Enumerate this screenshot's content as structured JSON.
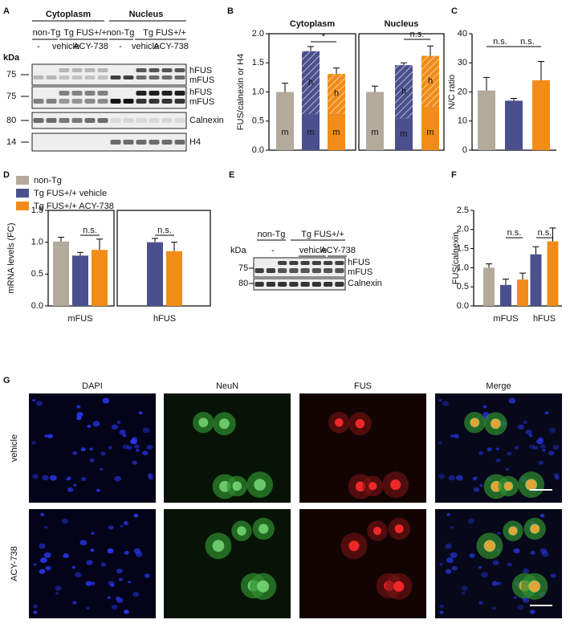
{
  "panel_labels": [
    "A",
    "B",
    "C",
    "D",
    "E",
    "F",
    "G"
  ],
  "blot_a": {
    "fractions": [
      "Cytoplasm",
      "Nucleus"
    ],
    "genotypes": [
      "non-Tg",
      "Tg FUS+/+",
      "non-Tg",
      "Tg FUS+/+"
    ],
    "treatments": [
      "-",
      "vehicle",
      "ACY-738",
      "-",
      "vehicle",
      "ACY-738"
    ],
    "kda_label": "kDa",
    "markers": [
      "75",
      "75",
      "80",
      "14"
    ],
    "bands": [
      "hFUS",
      "mFUS",
      "hFUS",
      "mFUS",
      "Calnexin",
      "H4"
    ]
  },
  "blot_e": {
    "genotypes": [
      "non-Tg",
      "Tg FUS+/+"
    ],
    "kda_label": "kDa",
    "treatments": [
      "-",
      "vehicle",
      "ACY-738"
    ],
    "markers": [
      "75",
      "80"
    ],
    "bands": [
      "hFUS",
      "mFUS",
      "Calnexin"
    ]
  },
  "chart_data": [
    {
      "type": "stacked-bar",
      "ylabel": "FUS/calnexin or H4",
      "ylim": [
        0,
        2
      ],
      "yticks": [
        {
          "value": 0,
          "label": "0.0"
        },
        0.5,
        {
          "value": 1,
          "label": "1.0"
        },
        1.5,
        {
          "value": 2,
          "label": "2.0"
        }
      ],
      "groups": [
        "Cytoplasm",
        "Nucleus"
      ],
      "colors": [
        "#b3aa9b",
        "#4a4f8e",
        "#f28c18"
      ],
      "series": [
        {
          "name": "m",
          "values": [
            [
              1.0,
              0.62,
              0.63
            ],
            [
              1.0,
              0.55,
              0.75
            ]
          ],
          "errors": [
            [
              0.15,
              0.07,
              0.15
            ],
            [
              0.1,
              0.07,
              0.25
            ]
          ]
        },
        {
          "name": "h",
          "hatch": true,
          "values": [
            [
              null,
              1.08,
              0.68
            ],
            [
              null,
              0.91,
              0.87
            ]
          ],
          "errors": [
            [
              null,
              0.08,
              0.1
            ],
            [
              null,
              0.04,
              0.17
            ]
          ]
        }
      ],
      "annotations": [
        "*",
        "n.s."
      ]
    },
    {
      "type": "bar",
      "ylabel": "N/C ratio",
      "ylim": [
        0,
        40
      ],
      "yticks": [
        0,
        10,
        20,
        30,
        40
      ],
      "colors": [
        "#b3aa9b",
        "#4a4f8e",
        "#f28c18"
      ],
      "values": [
        20.5,
        17.0,
        24.0
      ],
      "errors": [
        4.5,
        0.8,
        6.5
      ],
      "annotations": [
        "n.s.",
        "n.s."
      ]
    },
    {
      "type": "grouped-bar",
      "ylabel": "mRNA levels (FC)",
      "ylim": [
        0,
        1.5
      ],
      "yticks": [
        {
          "value": 0,
          "label": "0.0"
        },
        0.5,
        {
          "value": 1,
          "label": "1.0"
        },
        1.5
      ],
      "categories": [
        "mFUS",
        "hFUS"
      ],
      "series": [
        {
          "name": "non-Tg",
          "color": "#b3aa9b",
          "values": [
            1.01,
            null
          ],
          "errors": [
            0.07,
            null
          ]
        },
        {
          "name": "Tg FUS+/+ vehicle",
          "color": "#4a4f8e",
          "values": [
            0.79,
            1.0
          ],
          "errors": [
            0.05,
            0.06
          ]
        },
        {
          "name": "Tg FUS+/+ ACY-738",
          "color": "#f28c18",
          "values": [
            0.88,
            0.86
          ],
          "errors": [
            0.17,
            0.14
          ]
        }
      ],
      "annotations": [
        "n.s.",
        "n.s."
      ]
    },
    {
      "type": "grouped-bar",
      "ylabel": "FUS/calnexin",
      "ylim": [
        0,
        2.5
      ],
      "yticks": [
        {
          "value": 0,
          "label": "0.0"
        },
        0.5,
        {
          "value": 1,
          "label": "1.0"
        },
        1.5,
        {
          "value": 2,
          "label": "2.0"
        },
        2.5
      ],
      "categories": [
        "mFUS",
        "hFUS"
      ],
      "series": [
        {
          "color": "#b3aa9b",
          "values": [
            1.0,
            null
          ],
          "errors": [
            0.1,
            null
          ]
        },
        {
          "color": "#4a4f8e",
          "values": [
            0.55,
            1.35
          ],
          "errors": [
            0.15,
            0.2
          ]
        },
        {
          "color": "#f28c18",
          "values": [
            0.69,
            1.69
          ],
          "errors": [
            0.17,
            0.35
          ]
        }
      ],
      "annotations": [
        "n.s.",
        "n.s."
      ]
    }
  ],
  "images": {
    "columns": [
      "DAPI",
      "NeuN",
      "FUS",
      "Merge"
    ],
    "rows": [
      "vehicle",
      "ACY-738"
    ]
  }
}
